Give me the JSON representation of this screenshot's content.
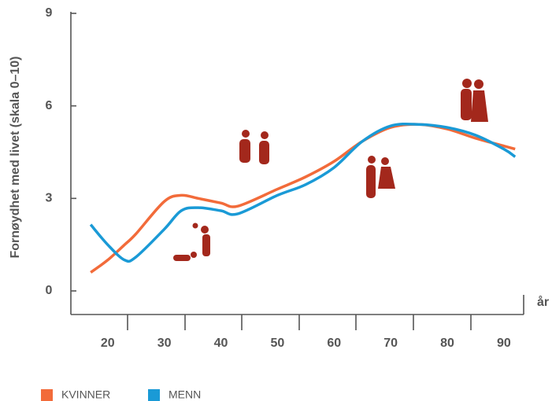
{
  "chart_data": {
    "type": "line",
    "ylabel": "Fornøydhet med livet (skala 0–10)",
    "xlabel": "år",
    "x": [
      17,
      20,
      23,
      25,
      30,
      33,
      36,
      40,
      43,
      50,
      55,
      60,
      65,
      70,
      75,
      80,
      85,
      90,
      92
    ],
    "series": [
      {
        "name": "KVINNER",
        "color": "#f26b3a",
        "values": [
          0.6,
          1.0,
          1.5,
          1.85,
          2.9,
          3.1,
          3.0,
          2.85,
          2.75,
          3.3,
          3.7,
          4.2,
          4.85,
          5.3,
          5.4,
          5.25,
          4.95,
          4.7,
          4.6
        ]
      },
      {
        "name": "MENN",
        "color": "#1a9ad6",
        "values": [
          2.15,
          1.5,
          1.0,
          1.1,
          2.0,
          2.6,
          2.7,
          2.6,
          2.5,
          3.1,
          3.45,
          4.0,
          4.85,
          5.35,
          5.4,
          5.3,
          5.05,
          4.6,
          4.35
        ]
      }
    ],
    "xlim": [
      13.5,
      93.5
    ],
    "xticks": [
      20,
      30,
      40,
      50,
      60,
      70,
      80,
      90
    ],
    "ylim": [
      0,
      9
    ],
    "yticks": [
      0,
      3,
      6,
      9
    ],
    "grid": false,
    "legend": "bottom"
  }
}
